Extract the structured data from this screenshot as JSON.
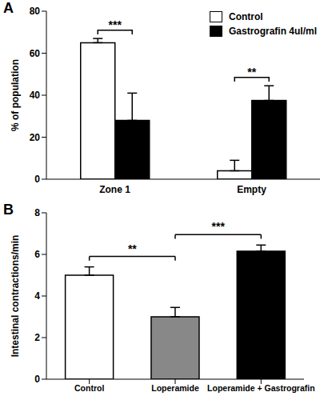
{
  "chart_data": [
    {
      "type": "bar",
      "title": "A",
      "categories": [
        "Zone 1",
        "Empty"
      ],
      "series": [
        {
          "name": "Control",
          "color": "#ffffff",
          "values": [
            65,
            4
          ],
          "errors": [
            2,
            5
          ]
        },
        {
          "name": "Gastrografin 4ul/ml",
          "color": "#000000",
          "values": [
            28,
            37.5
          ],
          "errors": [
            13,
            7
          ]
        }
      ],
      "y_label": "% of population",
      "ylim": [
        0,
        80
      ],
      "yticks": [
        0,
        20,
        40,
        60,
        80
      ],
      "legend": "top-right",
      "grid": false,
      "annotations": [
        {
          "text": "***",
          "category": "Zone 1"
        },
        {
          "text": "**",
          "category": "Empty"
        }
      ]
    },
    {
      "type": "bar",
      "title": "B",
      "categories": [
        "Control",
        "Loperamide",
        "Loperamide + Gastrografin"
      ],
      "values": [
        5,
        3,
        6.15
      ],
      "errors": [
        0.4,
        0.45,
        0.3
      ],
      "colors": [
        "#ffffff",
        "#888888",
        "#000000"
      ],
      "y_label": "Intestinal contractions/min",
      "ylim": [
        0,
        8
      ],
      "yticks": [
        0,
        2,
        4,
        6,
        8
      ],
      "grid": false,
      "annotations": [
        {
          "text": "**",
          "between": [
            "Control",
            "Loperamide"
          ]
        },
        {
          "text": "***",
          "between": [
            "Loperamide",
            "Loperamide + Gastrografin"
          ]
        }
      ]
    }
  ]
}
